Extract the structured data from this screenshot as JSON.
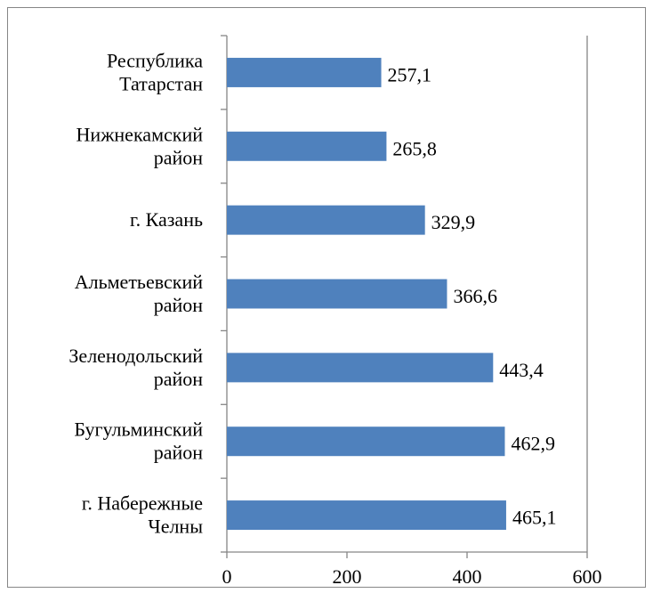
{
  "chart_data": {
    "type": "bar",
    "orientation": "horizontal",
    "categories": [
      "Республика\nТатарстан",
      "Нижнекамский\nрайон",
      "г. Казань",
      "Альметьевский\nрайон",
      "Зеленодольский\nрайон",
      "Бугульминский\nрайон",
      "г. Набережные\nЧелны"
    ],
    "values": [
      257.1,
      265.8,
      329.9,
      366.6,
      443.4,
      462.9,
      465.1
    ],
    "value_labels": [
      "257,1",
      "265,8",
      "329,9",
      "366,6",
      "443,4",
      "462,9",
      "465,1"
    ],
    "color": "#4f81bd",
    "xlim": [
      0,
      600
    ],
    "xticks": [
      0,
      200,
      400,
      600
    ],
    "grid": false
  }
}
